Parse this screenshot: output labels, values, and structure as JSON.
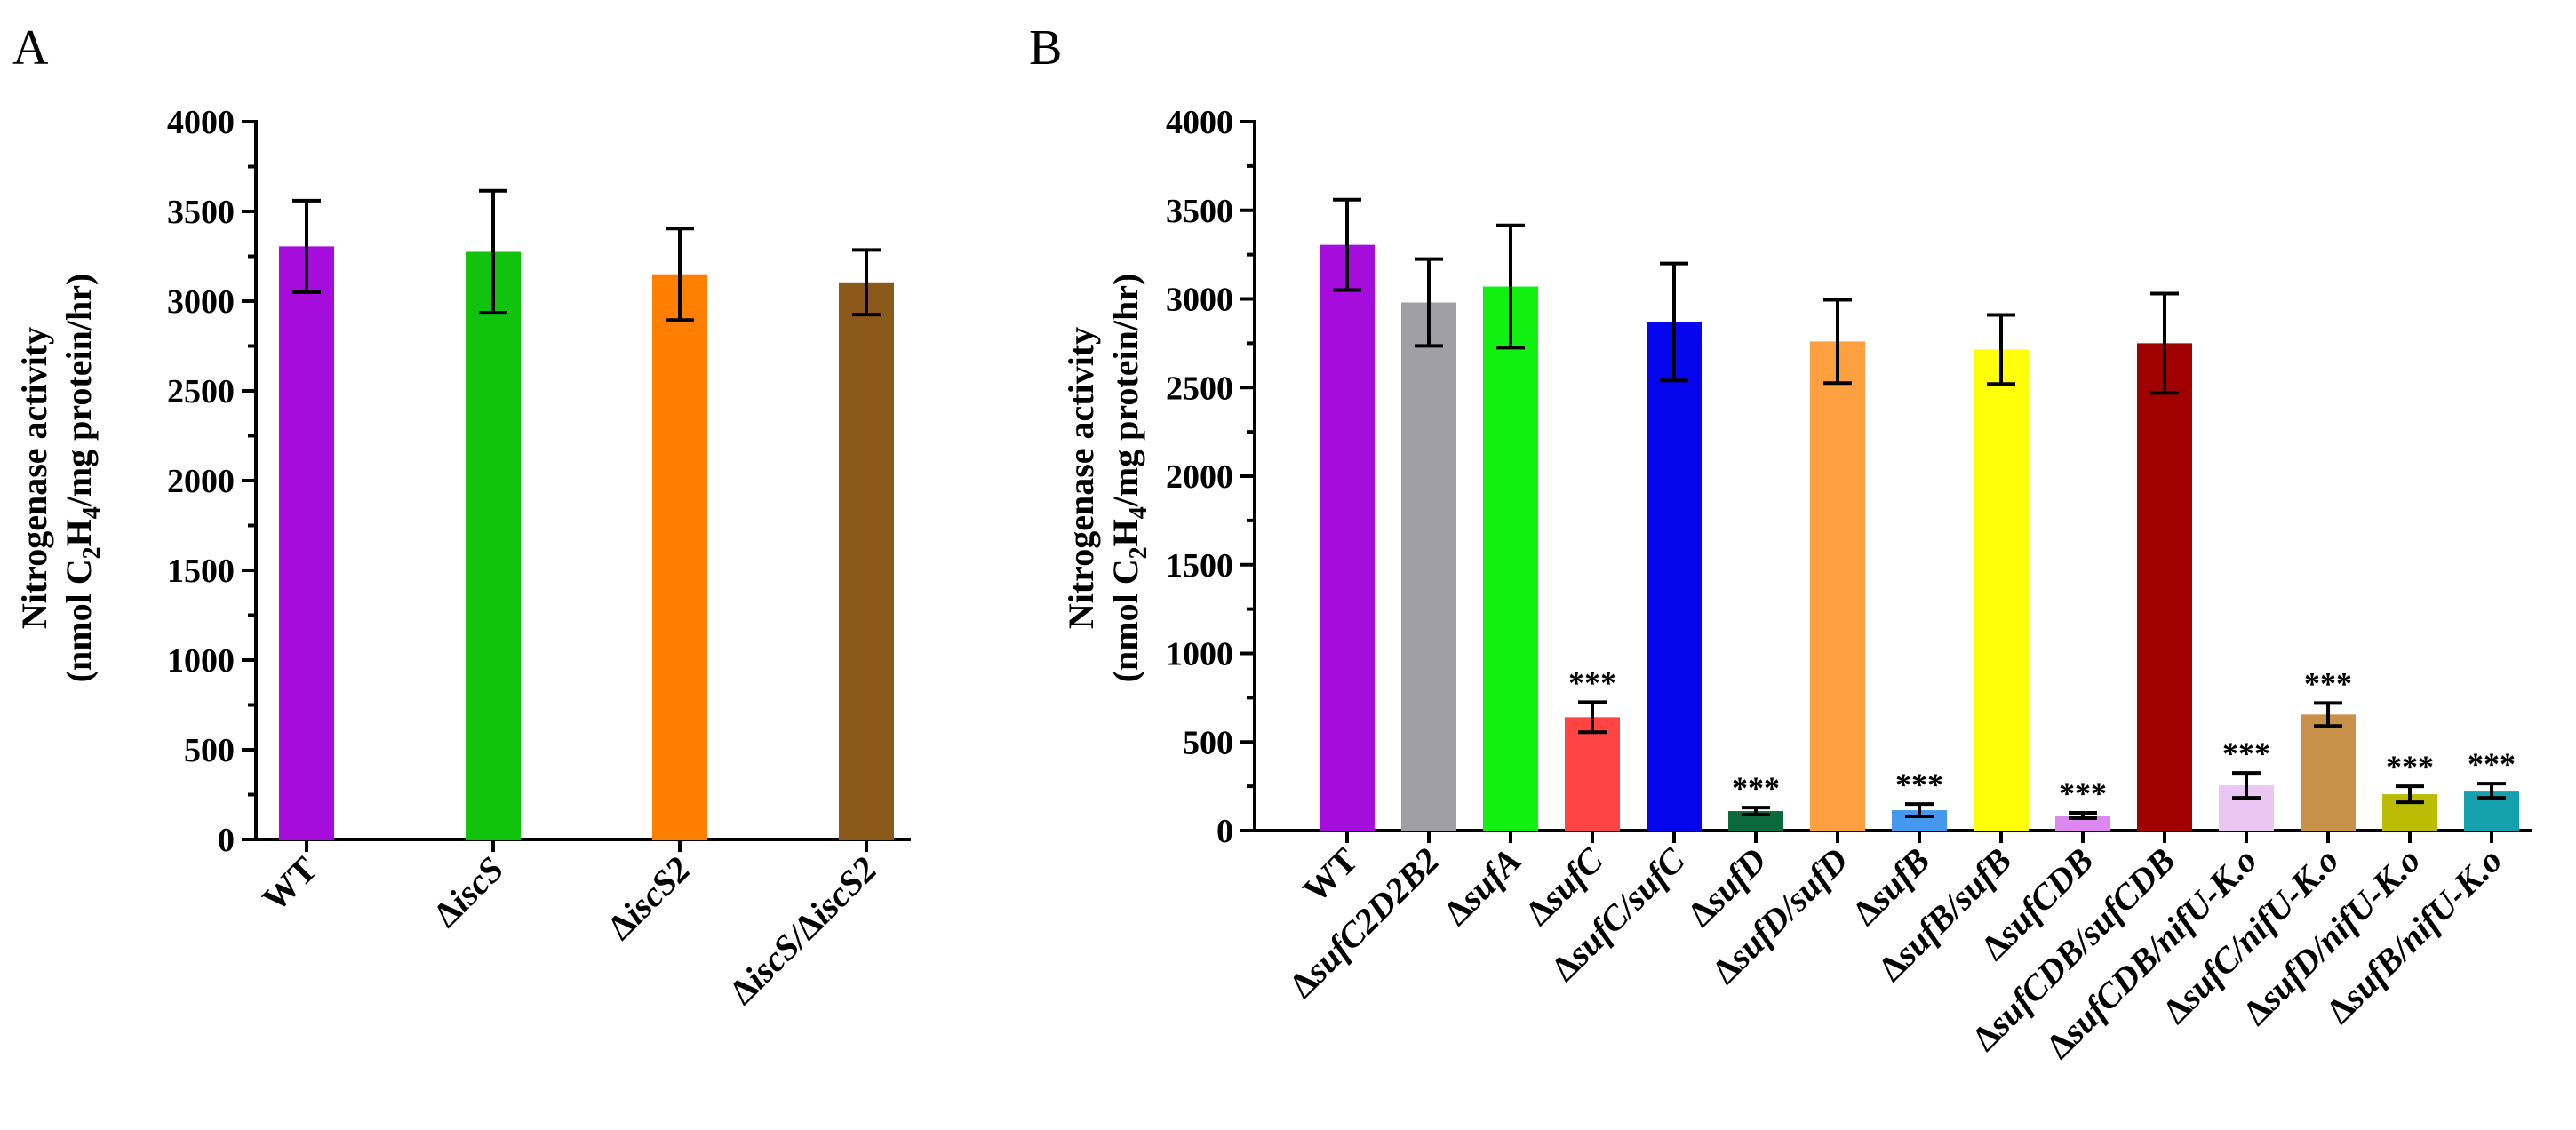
{
  "chart_data": [
    {
      "panel_label": "A",
      "type": "bar",
      "ylabel_line1": "Nitrogenase activity",
      "ylabel_line2_parts": [
        "(nmol C",
        "2",
        "H",
        "4",
        "/mg protein/hr)"
      ],
      "ylim": [
        0,
        4000
      ],
      "yticks": [
        0,
        500,
        1000,
        1500,
        2000,
        2500,
        3000,
        3500,
        4000
      ],
      "categories": [
        {
          "prefix": "",
          "name": "WT"
        },
        {
          "prefix": "Δ",
          "name": "iscS"
        },
        {
          "prefix": "Δ",
          "name": "iscS2"
        },
        {
          "prefix": "Δ",
          "name": "iscS/",
          "prefix2": "Δ",
          "name2": "iscS2"
        }
      ],
      "values": [
        3305,
        3275,
        3150,
        3105
      ],
      "errors": [
        255,
        340,
        255,
        180
      ],
      "colors": [
        "#a40ddc",
        "#10c30c",
        "#ff7f00",
        "#8b5a1a"
      ],
      "significance": [
        "",
        "",
        "",
        ""
      ]
    },
    {
      "panel_label": "B",
      "type": "bar",
      "ylabel_line1": "Nitrogenase activity",
      "ylabel_line2_parts": [
        "(nmol C",
        "2",
        "H",
        "4",
        "/mg protein/hr)"
      ],
      "ylim": [
        0,
        4000
      ],
      "yticks": [
        0,
        500,
        1000,
        1500,
        2000,
        2500,
        3000,
        3500,
        4000
      ],
      "categories": [
        {
          "prefix": "",
          "name": "WT"
        },
        {
          "prefix": "Δ",
          "name": "sufC2D2B2"
        },
        {
          "prefix": "Δ",
          "name": "sufA"
        },
        {
          "prefix": "Δ",
          "name": "sufC"
        },
        {
          "prefix": "Δ",
          "name": "sufC/sufC"
        },
        {
          "prefix": "Δ",
          "name": "sufD"
        },
        {
          "prefix": "Δ",
          "name": "sufD/sufD"
        },
        {
          "prefix": "Δ",
          "name": "sufB"
        },
        {
          "prefix": "Δ",
          "name": "sufB/sufB"
        },
        {
          "prefix": "Δ",
          "name": "sufCDB"
        },
        {
          "prefix": "Δ",
          "name": "sufCDB/sufCDB"
        },
        {
          "prefix": "Δ",
          "name": "sufCDB/nifU-K.o"
        },
        {
          "prefix": "Δ",
          "name": "sufC/nifU-K.o"
        },
        {
          "prefix": "Δ",
          "name": "sufD/nifU-K.o"
        },
        {
          "prefix": "Δ",
          "name": "sufB/nifU-K.o"
        }
      ],
      "values": [
        3305,
        2980,
        3070,
        640,
        2870,
        110,
        2760,
        115,
        2715,
        85,
        2750,
        255,
        655,
        205,
        225
      ],
      "errors": [
        255,
        245,
        345,
        85,
        330,
        20,
        235,
        35,
        195,
        15,
        280,
        70,
        65,
        45,
        40
      ],
      "colors": [
        "#a40ddc",
        "#a09fa5",
        "#11f111",
        "#ff4444",
        "#0505ee",
        "#0a6a3c",
        "#ffa040",
        "#4499ee",
        "#ffff0a",
        "#dd88ee",
        "#a00000",
        "#eac6f3",
        "#c8914a",
        "#bcbc05",
        "#14a0ac"
      ],
      "significance": [
        "",
        "",
        "",
        "***",
        "",
        "***",
        "",
        "***",
        "",
        "***",
        "",
        "***",
        "***",
        "***",
        "***"
      ]
    }
  ]
}
